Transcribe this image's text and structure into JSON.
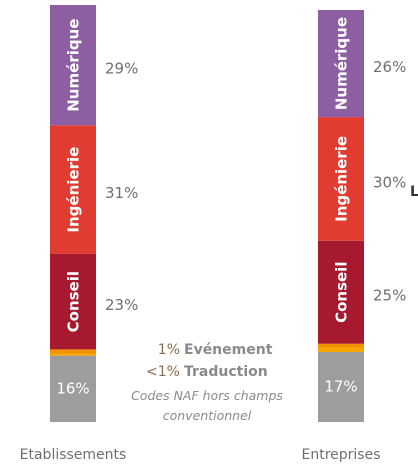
{
  "chart_data": {
    "type": "stacked_bar",
    "categories": [
      "Etablissements",
      "Entreprises"
    ],
    "series": [
      {
        "name": "Codes NAF hors champs conventionnel",
        "color": "#9d9d9c",
        "values": [
          16,
          17
        ],
        "value_labels": [
          "16%",
          "17%"
        ]
      },
      {
        "name": "Traduction",
        "color": "#f7a600",
        "values": [
          0.5,
          1
        ],
        "value_labels": [
          "<1%",
          null
        ]
      },
      {
        "name": "Evénement",
        "color": "#f39200",
        "values": [
          1,
          1
        ],
        "value_labels": [
          "1%",
          null
        ]
      },
      {
        "name": "Conseil",
        "color": "#a6192e",
        "values": [
          23,
          25
        ],
        "value_labels": [
          "23%",
          "25%"
        ]
      },
      {
        "name": "Ingénierie",
        "color": "#e03c31",
        "values": [
          31,
          30
        ],
        "value_labels": [
          "31%",
          "30%"
        ]
      },
      {
        "name": "Numérique",
        "color": "#8e5ea2",
        "values": [
          29,
          26
        ],
        "value_labels": [
          "29%",
          "26%"
        ]
      }
    ],
    "annotation": "L"
  }
}
